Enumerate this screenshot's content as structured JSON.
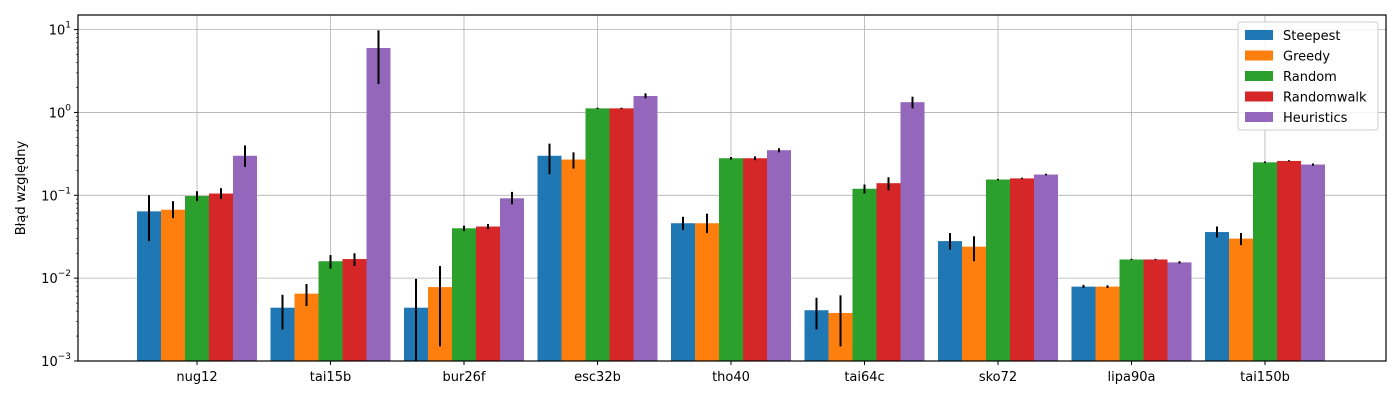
{
  "chart_data": {
    "type": "bar",
    "ylabel": "Błąd względny",
    "yscale": "log",
    "ylim": [
      0.001,
      15
    ],
    "grid": true,
    "legend_position": "top-right",
    "categories": [
      "nug12",
      "tai15b",
      "bur26f",
      "esc32b",
      "tho40",
      "tai64c",
      "sko72",
      "lipa90a",
      "tai150b"
    ],
    "y_ticks": [
      {
        "value": 0.001,
        "base": "10",
        "exp": "−3"
      },
      {
        "value": 0.01,
        "base": "10",
        "exp": "−2"
      },
      {
        "value": 0.1,
        "base": "10",
        "exp": "−1"
      },
      {
        "value": 1,
        "base": "10",
        "exp": "0"
      },
      {
        "value": 10,
        "base": "10",
        "exp": "1"
      }
    ],
    "series": [
      {
        "name": "Steepest",
        "color": "#1f77b4",
        "values": [
          0.064,
          0.0044,
          0.0044,
          0.3,
          0.046,
          0.0041,
          0.028,
          0.0079,
          0.036
        ],
        "err_low": [
          0.028,
          0.0024,
          0.001,
          0.18,
          0.038,
          0.0024,
          0.022,
          0.0076,
          0.031
        ],
        "err_high": [
          0.1,
          0.0063,
          0.0098,
          0.42,
          0.055,
          0.0058,
          0.035,
          0.0083,
          0.042
        ]
      },
      {
        "name": "Greedy",
        "color": "#ff7f0e",
        "values": [
          0.067,
          0.0065,
          0.0078,
          0.27,
          0.046,
          0.0038,
          0.024,
          0.0079,
          0.03
        ],
        "err_low": [
          0.053,
          0.0046,
          0.0015,
          0.21,
          0.035,
          0.0015,
          0.016,
          0.0076,
          0.025
        ],
        "err_high": [
          0.085,
          0.0085,
          0.014,
          0.33,
          0.06,
          0.0062,
          0.032,
          0.0082,
          0.035
        ]
      },
      {
        "name": "Random",
        "color": "#2ca02c",
        "values": [
          0.098,
          0.016,
          0.04,
          1.12,
          0.28,
          0.12,
          0.155,
          0.0168,
          0.25
        ],
        "err_low": [
          0.085,
          0.013,
          0.037,
          1.1,
          0.27,
          0.105,
          0.152,
          0.0165,
          0.245
        ],
        "err_high": [
          0.112,
          0.019,
          0.043,
          1.14,
          0.29,
          0.135,
          0.158,
          0.0171,
          0.256
        ]
      },
      {
        "name": "Randomwalk",
        "color": "#d62728",
        "values": [
          0.105,
          0.017,
          0.042,
          1.12,
          0.28,
          0.14,
          0.16,
          0.0168,
          0.26
        ],
        "err_low": [
          0.09,
          0.014,
          0.039,
          1.1,
          0.265,
          0.115,
          0.157,
          0.0165,
          0.255
        ],
        "err_high": [
          0.122,
          0.02,
          0.045,
          1.14,
          0.295,
          0.165,
          0.163,
          0.0171,
          0.265
        ]
      },
      {
        "name": "Heuristics",
        "color": "#9467bd",
        "values": [
          0.3,
          6.0,
          0.092,
          1.58,
          0.35,
          1.33,
          0.178,
          0.0155,
          0.235
        ],
        "err_low": [
          0.22,
          2.2,
          0.078,
          1.48,
          0.33,
          1.12,
          0.174,
          0.015,
          0.228
        ],
        "err_high": [
          0.4,
          9.8,
          0.11,
          1.7,
          0.37,
          1.55,
          0.182,
          0.016,
          0.242
        ]
      }
    ]
  }
}
